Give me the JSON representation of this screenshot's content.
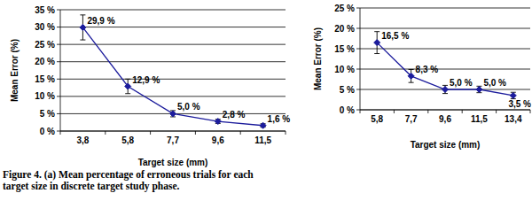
{
  "chart_data": [
    {
      "type": "line",
      "x_label": "Target size (mm)",
      "y_label": "Mean Error (%)",
      "categories": [
        "3,8",
        "5,8",
        "7,7",
        "9,6",
        "11,5"
      ],
      "values": [
        29.9,
        12.9,
        5.0,
        2.8,
        1.6
      ],
      "errors": [
        3.6,
        2.1,
        0.9,
        0.6,
        0.5
      ],
      "value_labels": [
        "29,9 %",
        "12,9 %",
        "5,0 %",
        "2,8 %",
        "1,6 %"
      ],
      "data_labels": true,
      "color": "#1c1c9c",
      "marker": "diamond",
      "ylim": [
        0,
        35
      ],
      "yticks": [
        {
          "value": 0,
          "label": "0 %"
        },
        {
          "value": 5,
          "label": "5 %"
        },
        {
          "value": 10,
          "label": "10 %"
        },
        {
          "value": 15,
          "label": "15 %"
        },
        {
          "value": 20,
          "label": "20 %"
        },
        {
          "value": 25,
          "label": "25 %"
        },
        {
          "value": 30,
          "label": "30 %"
        },
        {
          "value": 35,
          "label": "35 %"
        }
      ],
      "grid": true
    },
    {
      "type": "line",
      "x_label": "Target size (mm)",
      "y_label": "Mean Error (%)",
      "categories": [
        "5,8",
        "7,7",
        "9,6",
        "11,5",
        "13,4"
      ],
      "values": [
        16.5,
        8.3,
        5.0,
        5.0,
        3.5
      ],
      "errors": [
        2.7,
        1.6,
        1.0,
        0.8,
        0.8
      ],
      "value_labels": [
        "16,5 %",
        "8,3 %",
        "5,0 %",
        "5,0 %",
        "3,5 %"
      ],
      "data_labels": true,
      "color": "#1c1c9c",
      "marker": "diamond",
      "ylim": [
        0,
        25
      ],
      "yticks": [
        {
          "value": 0,
          "label": "0 %"
        },
        {
          "value": 5,
          "label": "5 %"
        },
        {
          "value": 10,
          "label": "10 %"
        },
        {
          "value": 15,
          "label": "15 %"
        },
        {
          "value": 20,
          "label": "20 %"
        },
        {
          "value": 25,
          "label": "25 %"
        }
      ],
      "grid": true
    }
  ],
  "caption": [
    "Figure 4. (a) Mean percentage of erroneous trials for each",
    "target size in discrete target study phase."
  ]
}
